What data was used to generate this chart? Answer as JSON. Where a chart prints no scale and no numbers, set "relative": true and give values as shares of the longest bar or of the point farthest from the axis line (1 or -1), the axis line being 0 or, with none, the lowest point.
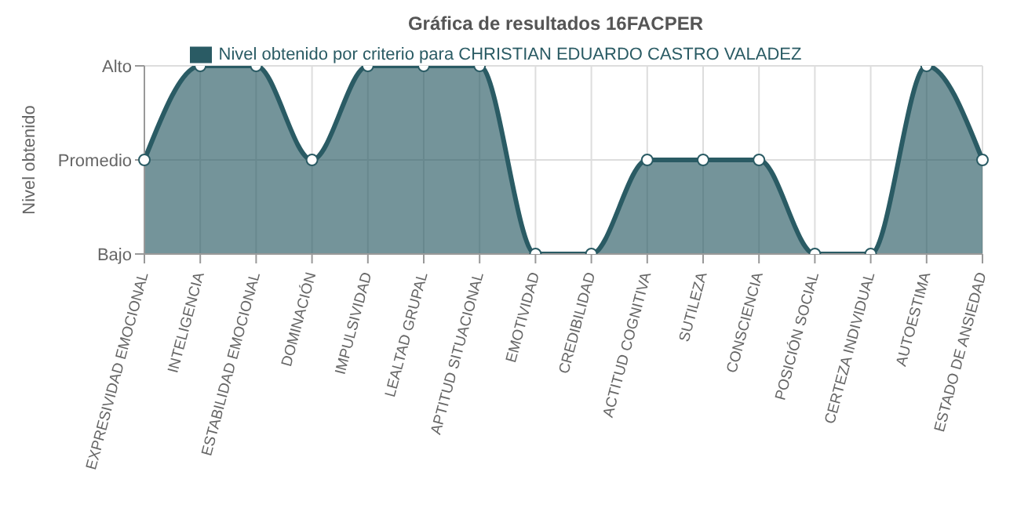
{
  "chart_data": {
    "type": "area",
    "title": "Gráfica de resultados 16FACPER",
    "ylabel": "Nivel obtenido",
    "categories": [
      "EXPRESIVIDAD EMOCIONAL",
      "INTELIGENCIA",
      "ESTABILIDAD EMOCIONAL",
      "DOMINACIÓN",
      "IMPULSIVIDAD",
      "LEALTAD GRUPAL",
      "APTITUD SITUACIONAL",
      "EMOTIVIDAD",
      "CREDIBILIDAD",
      "ACTITUD COGNITIVA",
      "SUTILEZA",
      "CONSCIENCIA",
      "POSICIÓN SOCIAL",
      "CERTEZA INDIVIDUAL",
      "AUTOESTIMA",
      "ESTADO DE ANSIEDAD"
    ],
    "y_categories": [
      "Alto",
      "Promedio",
      "Bajo"
    ],
    "relative": true,
    "series": [
      {
        "name": "Nivel obtenido por criterio para CHRISTIAN EDUARDO CASTRO VALADEZ",
        "color": "#2a5b64",
        "values": [
          0.5,
          1,
          1,
          0.5,
          1,
          1,
          1,
          0,
          0,
          0.5,
          0.5,
          0.5,
          0,
          0,
          1,
          0.5
        ]
      }
    ],
    "grid": true,
    "legend": "top",
    "marker": "circle"
  }
}
